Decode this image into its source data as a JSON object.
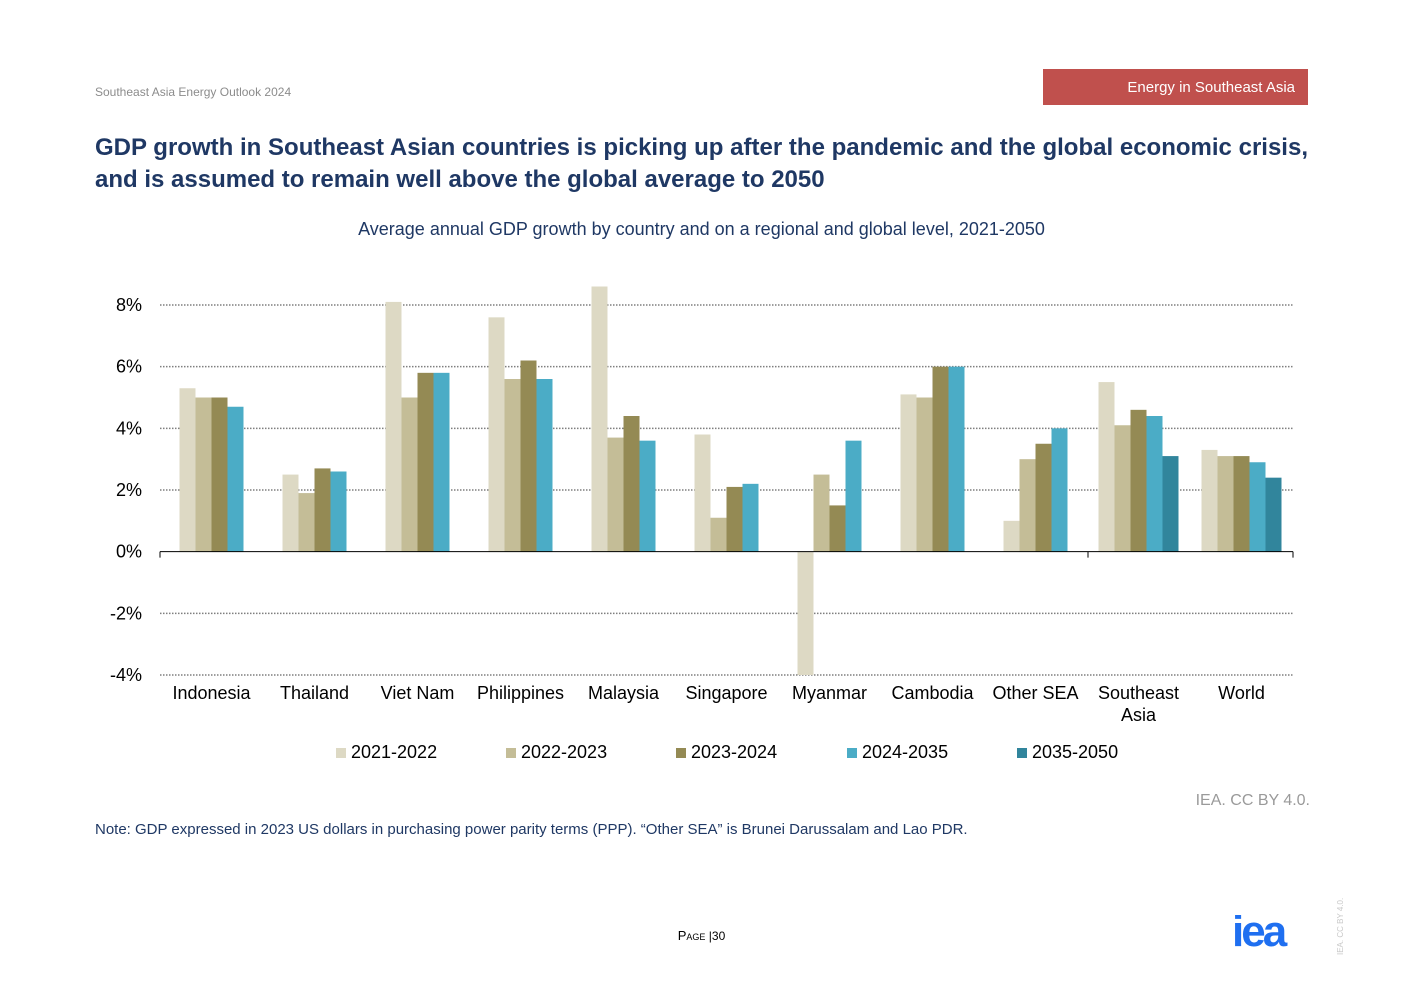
{
  "header": {
    "doc_title": "Southeast Asia Energy Outlook 2024",
    "section_tag": "Energy in Southeast Asia"
  },
  "headline": "GDP growth in Southeast Asian countries is picking up after the pandemic and the global economic crisis, and is assumed to remain well above the global average to 2050",
  "chart_data": {
    "type": "bar",
    "title": "Average annual GDP growth by country and on a regional and global level, 2021-2050",
    "xlabel": "",
    "ylabel": "",
    "ylim": [
      -4,
      8
    ],
    "yticks": [
      -4,
      -2,
      0,
      2,
      4,
      6,
      8
    ],
    "ytick_labels": [
      "-4%",
      "-2%",
      "0%",
      "2%",
      "4%",
      "6%",
      "8%"
    ],
    "grid": true,
    "legend_position": "bottom",
    "categories": [
      "Indonesia",
      "Thailand",
      "Viet Nam",
      "Philippines",
      "Malaysia",
      "Singapore",
      "Myanmar",
      "Cambodia",
      "Other SEA",
      "Southeast Asia",
      "World"
    ],
    "category_labels": [
      [
        "Indonesia"
      ],
      [
        "Thailand"
      ],
      [
        "Viet Nam"
      ],
      [
        "Philippines"
      ],
      [
        "Malaysia"
      ],
      [
        "Singapore"
      ],
      [
        "Myanmar"
      ],
      [
        "Cambodia"
      ],
      [
        "Other SEA"
      ],
      [
        "Southeast",
        "Asia"
      ],
      [
        "World"
      ]
    ],
    "series": [
      {
        "name": "2021-2022",
        "color": "#ddd9c4",
        "values": [
          5.3,
          2.5,
          8.1,
          7.6,
          8.6,
          3.8,
          -4.0,
          5.1,
          1.0,
          5.5,
          3.3
        ]
      },
      {
        "name": "2022-2023",
        "color": "#c4bd97",
        "values": [
          5.0,
          1.9,
          5.0,
          5.6,
          3.7,
          1.1,
          2.5,
          5.0,
          3.0,
          4.1,
          3.1
        ]
      },
      {
        "name": "2023-2024",
        "color": "#948a54",
        "values": [
          5.0,
          2.7,
          5.8,
          6.2,
          4.4,
          2.1,
          1.5,
          6.0,
          3.5,
          4.6,
          3.1
        ]
      },
      {
        "name": "2024-2035",
        "color": "#4bacc6",
        "values": [
          4.7,
          2.6,
          5.8,
          5.6,
          3.6,
          2.2,
          3.6,
          6.0,
          4.0,
          4.4,
          2.9
        ]
      },
      {
        "name": "2035-2050",
        "color": "#31859c",
        "values": [
          null,
          null,
          null,
          null,
          null,
          null,
          null,
          null,
          null,
          3.1,
          2.4
        ]
      }
    ]
  },
  "credit": "IEA. CC BY 4.0.",
  "note": "Note: GDP expressed in 2023 US dollars in purchasing power parity terms (PPP). “Other SEA” is Brunei Darussalam and Lao PDR.",
  "footer": {
    "page_label": "Page",
    "page_sep": "|",
    "page_number": "30",
    "logo_text": "iea",
    "side_license": "IEA. CC BY 4.0."
  },
  "colors": {
    "headline": "#1f3864",
    "section_tag_bg": "#c0504d",
    "logo": "#1f6ff0"
  }
}
